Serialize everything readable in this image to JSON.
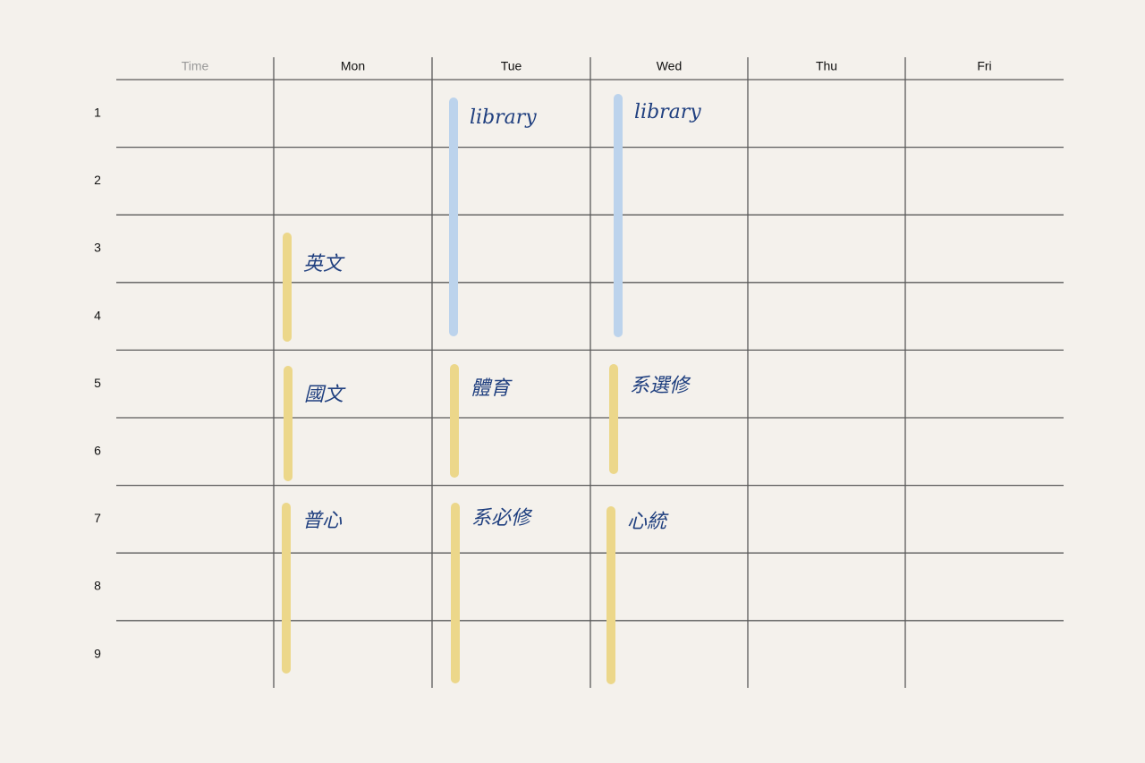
{
  "header": {
    "time": "Time",
    "days": [
      "Mon",
      "Tue",
      "Wed",
      "Thu",
      "Fri"
    ]
  },
  "periods": [
    "1",
    "2",
    "3",
    "4",
    "5",
    "6",
    "7",
    "8",
    "9"
  ],
  "entries": {
    "mon": [
      "英文",
      "國文",
      "普心"
    ],
    "tue": [
      "library",
      "體育",
      "系必修"
    ],
    "wed": [
      "library",
      "系選修",
      "心統"
    ]
  }
}
